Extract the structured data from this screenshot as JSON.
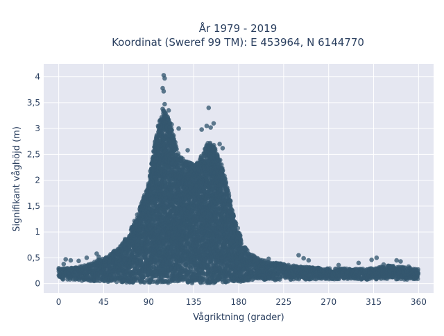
{
  "chart_data": {
    "type": "scatter",
    "title_line1": "År 1979 - 2019",
    "title_line2": "Koordinat (Sweref 99 TM): E 453964, N 6144770",
    "xlabel": "Vågriktning (grader)",
    "ylabel": "Signifikant våghöjd (m)",
    "xlim": [
      -15,
      375
    ],
    "ylim": [
      -0.18,
      4.25
    ],
    "x_ticks": [
      0,
      45,
      90,
      135,
      180,
      225,
      270,
      315,
      360
    ],
    "x_tick_labels": [
      "0",
      "45",
      "90",
      "135",
      "180",
      "225",
      "270",
      "315",
      "360"
    ],
    "y_ticks": [
      0,
      0.5,
      1,
      1.5,
      2,
      2.5,
      3,
      3.5,
      4
    ],
    "y_tick_labels": [
      "0",
      "0,5",
      "1",
      "1,5",
      "2",
      "2,5",
      "3",
      "3,5",
      "4"
    ],
    "grid": true,
    "colors": {
      "marker": "#34576f",
      "plot_background": "#e5e7f1",
      "grid": "#ffffff",
      "text": "#2a3f5f"
    },
    "envelope": {
      "x": [
        0,
        10,
        20,
        30,
        45,
        60,
        70,
        80,
        90,
        95,
        100,
        105,
        110,
        115,
        120,
        125,
        130,
        135,
        140,
        145,
        150,
        155,
        160,
        165,
        170,
        175,
        180,
        185,
        190,
        200,
        210,
        225,
        240,
        270,
        300,
        315,
        330,
        345,
        360
      ],
      "y_max": [
        0.3,
        0.3,
        0.32,
        0.38,
        0.5,
        0.7,
        0.95,
        1.4,
        1.95,
        2.6,
        3.1,
        3.35,
        3.2,
        2.85,
        2.5,
        2.4,
        2.35,
        2.3,
        2.35,
        2.6,
        2.75,
        2.7,
        2.5,
        2.15,
        1.75,
        1.35,
        1.0,
        0.75,
        0.6,
        0.48,
        0.42,
        0.38,
        0.33,
        0.3,
        0.28,
        0.3,
        0.35,
        0.32,
        0.28
      ],
      "y_min": [
        0.08,
        0.08,
        0.06,
        0.05,
        0.04,
        0.03,
        0.02,
        0.02,
        0.01,
        0.01,
        0.01,
        0.01,
        0.01,
        0.01,
        0.01,
        0.01,
        0.01,
        0.01,
        0.01,
        0.01,
        0.01,
        0.01,
        0.02,
        0.02,
        0.02,
        0.03,
        0.03,
        0.04,
        0.05,
        0.06,
        0.07,
        0.07,
        0.08,
        0.08,
        0.08,
        0.08,
        0.08,
        0.08,
        0.08
      ]
    },
    "outliers": [
      {
        "x": 105,
        "y": 4.03
      },
      {
        "x": 106,
        "y": 3.97
      },
      {
        "x": 104,
        "y": 3.78
      },
      {
        "x": 105,
        "y": 3.72
      },
      {
        "x": 106,
        "y": 3.47
      },
      {
        "x": 104,
        "y": 3.38
      },
      {
        "x": 110,
        "y": 3.35
      },
      {
        "x": 113,
        "y": 3.08
      },
      {
        "x": 120,
        "y": 3.0
      },
      {
        "x": 129,
        "y": 2.58
      },
      {
        "x": 132,
        "y": 2.33
      },
      {
        "x": 150,
        "y": 3.4
      },
      {
        "x": 148,
        "y": 3.05
      },
      {
        "x": 152,
        "y": 3.02
      },
      {
        "x": 155,
        "y": 3.1
      },
      {
        "x": 143,
        "y": 2.98
      },
      {
        "x": 161,
        "y": 2.7
      },
      {
        "x": 164,
        "y": 2.62
      },
      {
        "x": 7,
        "y": 0.47
      },
      {
        "x": 12,
        "y": 0.45
      },
      {
        "x": 5,
        "y": 0.38
      },
      {
        "x": 20,
        "y": 0.44
      },
      {
        "x": 28,
        "y": 0.5
      },
      {
        "x": 38,
        "y": 0.58
      },
      {
        "x": 40,
        "y": 0.52
      },
      {
        "x": 210,
        "y": 0.48
      },
      {
        "x": 240,
        "y": 0.55
      },
      {
        "x": 245,
        "y": 0.49
      },
      {
        "x": 250,
        "y": 0.45
      },
      {
        "x": 280,
        "y": 0.36
      },
      {
        "x": 300,
        "y": 0.4
      },
      {
        "x": 313,
        "y": 0.46
      },
      {
        "x": 318,
        "y": 0.5
      },
      {
        "x": 325,
        "y": 0.37
      },
      {
        "x": 332,
        "y": 0.34
      },
      {
        "x": 338,
        "y": 0.45
      },
      {
        "x": 342,
        "y": 0.43
      },
      {
        "x": 350,
        "y": 0.33
      },
      {
        "x": 355,
        "y": 0.28
      }
    ]
  }
}
